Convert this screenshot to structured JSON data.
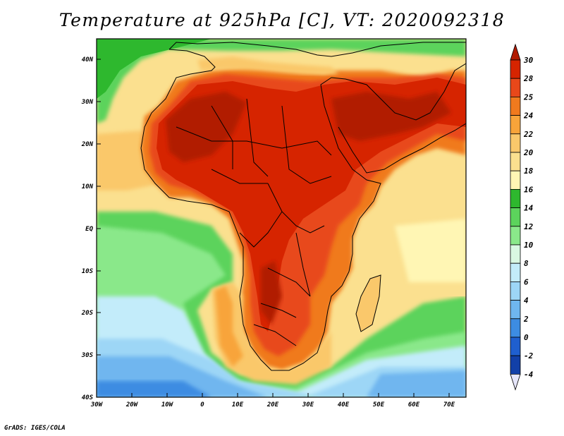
{
  "title": "Temperature at 925hPa [C], VT: 2020092318",
  "credit": "GrADS: IGES/COLA",
  "map": {
    "lat_labels": [
      "40N",
      "30N",
      "20N",
      "10N",
      "EQ",
      "10S",
      "20S",
      "30S",
      "40S"
    ],
    "lon_labels": [
      "30W",
      "20W",
      "10W",
      "0",
      "10E",
      "20E",
      "30E",
      "40E",
      "50E",
      "60E",
      "70E"
    ],
    "lon_range": [
      -30,
      75
    ],
    "lat_range": [
      -40,
      45
    ]
  },
  "colorbar": {
    "labels": [
      "30",
      "28",
      "25",
      "24",
      "22",
      "20",
      "18",
      "16",
      "14",
      "12",
      "10",
      "8",
      "6",
      "4",
      "2",
      "0",
      "-2",
      "-4"
    ],
    "colors": [
      "#b11a00",
      "#d62400",
      "#e8481a",
      "#f07a1e",
      "#f8a43a",
      "#fac86b",
      "#fbe08f",
      "#fff6b4",
      "#2eb82e",
      "#5cd35c",
      "#8ae88a",
      "#d9f8e2",
      "#c3ecfa",
      "#9dd6f6",
      "#6fb6ef",
      "#3d8ce2",
      "#1f5fcf",
      "#1240a8",
      "#0b1f78"
    ]
  }
}
